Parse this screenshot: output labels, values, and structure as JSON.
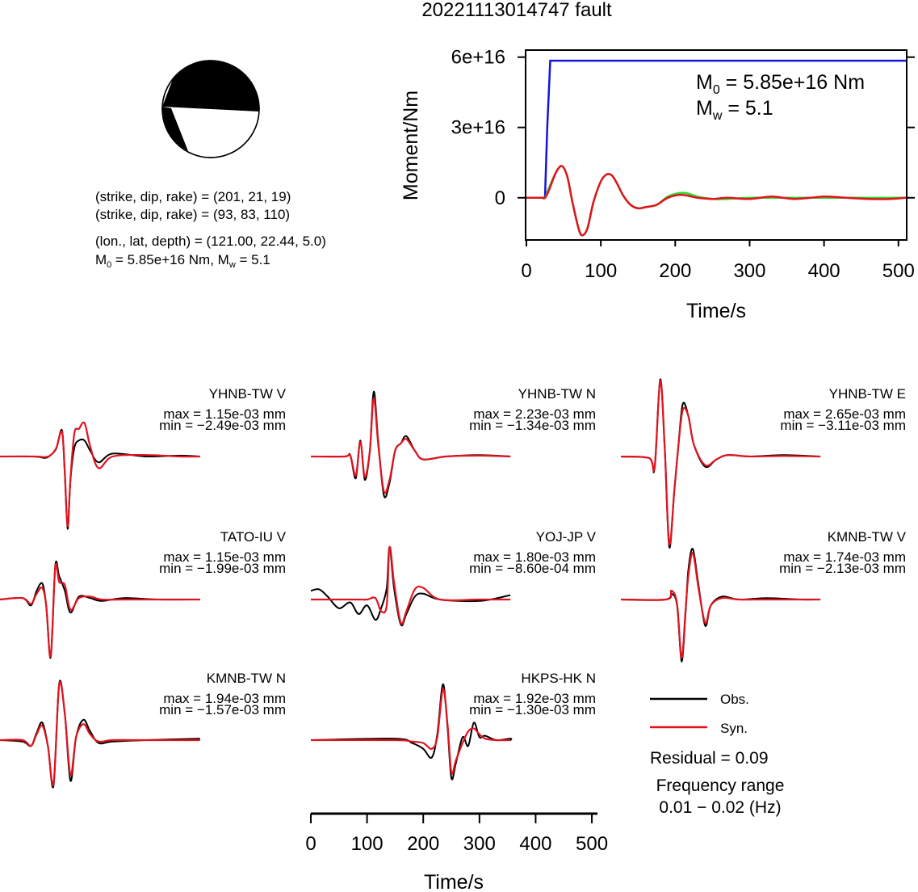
{
  "page": {
    "title": "20221113014747 fault"
  },
  "info": {
    "line1": "(strike, dip, rake) = (201, 21, 19)",
    "line2": "(strike, dip, rake) = (93, 83, 110)",
    "line3": "(lon., lat, depth) = (121.00, 22.44, 5.0)",
    "m0_prefix": "M",
    "m0_sub": "0",
    "m0_rest": " = 5.85e+16 Nm, M",
    "mw_sub": "w",
    "mw_rest": " = 5.1"
  },
  "moment_plot": {
    "ylabel": "Moment/Nm",
    "xlabel": "Time/s",
    "m0_prefix": "M",
    "m0_sub": "0",
    "m0_rest": " = 5.85e+16 Nm",
    "mw_prefix": "M",
    "mw_sub": "w",
    "mw_rest": " = 5.1",
    "yticks": [
      "0",
      "3e+16",
      "6e+16"
    ],
    "xticks": [
      "0",
      "100",
      "200",
      "300",
      "400",
      "500"
    ]
  },
  "legend": {
    "obs": "Obs.",
    "syn": "Syn.",
    "residual": "Residual = 0.09",
    "freq_title": "Frequency range",
    "freq_value": "0.01 − 0.02 (Hz)",
    "obs_color": "#000000",
    "syn_color": "#e0141e"
  },
  "wave_axis": {
    "xlabel": "Time/s",
    "xticks": [
      "0",
      "100",
      "200",
      "300",
      "400",
      "500"
    ]
  },
  "chart_data": [
    {
      "type": "line",
      "title": "",
      "xlabel": "Time/s",
      "ylabel": "Moment/Nm",
      "xlim": [
        0,
        510
      ],
      "ylim": [
        -1.8e+16,
        6.3e+16
      ],
      "series": [
        {
          "color": "#1414dc",
          "x": [
            0,
            25,
            28,
            32,
            510
          ],
          "y": [
            0,
            0,
            3e+16,
            5.85e+16,
            5.85e+16
          ]
        },
        {
          "color": "#2ed82e",
          "x": [
            0,
            20,
            25,
            30,
            40,
            48,
            55,
            62,
            70,
            75,
            82,
            90,
            100,
            108,
            115,
            122,
            130,
            140,
            150,
            160,
            175,
            190,
            205,
            215,
            230,
            250,
            270,
            300,
            330,
            360,
            400,
            430,
            460,
            490,
            510
          ],
          "y": [
            0,
            0,
            0,
            4000000000000000.0,
            1.1e+16,
            1.35e+16,
            9000000000000000.0,
            -2000000000000000.0,
            -1.3e+16,
            -1.6e+16,
            -1.3e+16,
            -2000000000000000.0,
            7000000000000000.0,
            1e+16,
            9500000000000000.0,
            6000000000000000.0,
            1000000000000000.0,
            -3000000000000000.0,
            -4500000000000000.0,
            -4000000000000000.0,
            -3000000000000000.0,
            500000000000000.0,
            2000000000000000.0,
            2000000000000000.0,
            500000000000000.0,
            -500000000000000.0,
            -500000000000000.0,
            0,
            0,
            0,
            0,
            0,
            0,
            0,
            0
          ]
        },
        {
          "color": "#e0141e",
          "x": [
            0,
            20,
            25,
            30,
            40,
            48,
            55,
            62,
            70,
            75,
            82,
            90,
            100,
            108,
            115,
            122,
            130,
            140,
            150,
            160,
            175,
            190,
            205,
            215,
            230,
            250,
            270,
            300,
            330,
            360,
            400,
            430,
            460,
            490,
            510
          ],
          "y": [
            0,
            0,
            0,
            3000000000000000.0,
            1.1e+16,
            1.35e+16,
            9000000000000000.0,
            -2000000000000000.0,
            -1.3e+16,
            -1.6e+16,
            -1.3e+16,
            -2000000000000000.0,
            7000000000000000.0,
            1e+16,
            9500000000000000.0,
            6000000000000000.0,
            1000000000000000.0,
            -3000000000000000.0,
            -4500000000000000.0,
            -4000000000000000.0,
            -3000000000000000.0,
            0,
            1200000000000000.0,
            1000000000000000.0,
            0,
            -500000000000000.0,
            0,
            -500000000000000.0,
            500000000000000.0,
            -500000000000000.0,
            500000000000000.0,
            0,
            -500000000000000.0,
            -500000000000000.0,
            0
          ]
        }
      ]
    },
    {
      "type": "line",
      "title": "YHNB-TW V",
      "max": "max = 1.15e-03 mm",
      "min": "min = −2.49e-03 mm",
      "xlim": [
        0,
        510
      ],
      "obs": {
        "x": [
          0,
          60,
          80,
          90,
          100,
          110,
          115,
          120,
          125,
          132,
          140,
          150,
          160,
          175,
          200,
          260,
          320,
          355
        ],
        "y": [
          0,
          0,
          -0.05,
          0.05,
          0.28,
          0.9,
          -0.6,
          -2.49,
          -0.8,
          0.3,
          0.55,
          0.55,
          0.2,
          -0.2,
          0.1,
          0,
          0.03,
          0
        ]
      },
      "syn": {
        "x": [
          0,
          60,
          80,
          90,
          100,
          110,
          115,
          120,
          125,
          132,
          140,
          150,
          160,
          175,
          200,
          260,
          320,
          355
        ],
        "y": [
          0,
          0,
          -0.02,
          0.05,
          0.3,
          0.85,
          -0.55,
          -2.4,
          -0.75,
          0.8,
          0.95,
          1.15,
          0.35,
          -0.4,
          0,
          0.05,
          0,
          0
        ]
      }
    },
    {
      "type": "line",
      "title": "YHNB-TW N",
      "max": "max = 2.23e-03 mm",
      "min": "min = −1.34e-03 mm",
      "xlim": [
        0,
        510
      ],
      "obs": {
        "x": [
          0,
          60,
          70,
          80,
          88,
          96,
          105,
          112,
          120,
          130,
          140,
          150,
          160,
          170,
          185,
          200,
          240,
          300,
          355
        ],
        "y": [
          0,
          0,
          0.05,
          -0.75,
          0.55,
          -0.8,
          0.2,
          2.23,
          0.5,
          -1.34,
          -0.9,
          0.2,
          0.45,
          0.7,
          0.2,
          -0.1,
          0,
          0.05,
          0
        ]
      },
      "syn": {
        "x": [
          0,
          60,
          70,
          80,
          88,
          96,
          105,
          112,
          120,
          130,
          140,
          150,
          160,
          170,
          185,
          200,
          240,
          300,
          355
        ],
        "y": [
          0,
          0,
          0.05,
          -0.65,
          0.5,
          -0.7,
          0.2,
          2.0,
          0.4,
          -1.2,
          -0.8,
          0.2,
          0.45,
          0.6,
          0.2,
          -0.1,
          0,
          0.03,
          0
        ]
      }
    },
    {
      "type": "line",
      "title": "YHNB-TW E",
      "max": "max = 2.65e-03 mm",
      "min": "min = −3.11e-03 mm",
      "xlim": [
        0,
        510
      ],
      "obs": {
        "x": [
          0,
          50,
          60,
          70,
          78,
          86,
          95,
          102,
          110,
          120,
          130,
          150,
          170,
          190,
          230,
          290,
          355
        ],
        "y": [
          0,
          -0.05,
          -0.4,
          2.65,
          0.3,
          -3.11,
          -1.2,
          0.3,
          1.8,
          1.4,
          0.4,
          -0.35,
          -0.1,
          0.05,
          0,
          0.05,
          0
        ]
      },
      "syn": {
        "x": [
          0,
          50,
          60,
          70,
          78,
          86,
          95,
          102,
          110,
          120,
          130,
          150,
          170,
          190,
          230,
          290,
          355
        ],
        "y": [
          0,
          -0.05,
          -0.35,
          2.6,
          0.3,
          -3.0,
          -1.2,
          0.3,
          1.6,
          1.4,
          0.4,
          -0.3,
          -0.1,
          0.05,
          0,
          0.02,
          0
        ]
      }
    },
    {
      "type": "line",
      "title": "TATO-IU V",
      "max": "max = 1.15e-03 mm",
      "min": "min = −1.99e-03 mm",
      "xlim": [
        0,
        510
      ],
      "obs": {
        "x": [
          0,
          40,
          55,
          65,
          75,
          82,
          90,
          98,
          105,
          115,
          125,
          140,
          160,
          180,
          220,
          280,
          355
        ],
        "y": [
          0,
          0.05,
          -0.2,
          0.3,
          0.55,
          -0.2,
          -1.99,
          1.15,
          0.8,
          0.3,
          -0.45,
          0.1,
          0.05,
          -0.05,
          0.05,
          0,
          0
        ]
      },
      "syn": {
        "x": [
          0,
          40,
          55,
          65,
          75,
          82,
          90,
          98,
          105,
          115,
          125,
          140,
          160,
          180,
          220,
          280,
          355
        ],
        "y": [
          0,
          0.05,
          -0.15,
          0.2,
          0.4,
          -0.2,
          -1.95,
          1.1,
          0.6,
          0.5,
          -0.35,
          0.05,
          0.1,
          0,
          0,
          0,
          0
        ]
      }
    },
    {
      "type": "line",
      "title": "YOJ-JP V",
      "max": "max = 1.80e-03 mm",
      "min": "min = −8.60e-04 mm",
      "xlim": [
        0,
        510
      ],
      "obs": {
        "x": [
          0,
          15,
          30,
          50,
          70,
          85,
          100,
          115,
          125,
          135,
          140,
          148,
          160,
          170,
          185,
          200,
          230,
          300,
          355
        ],
        "y": [
          0.3,
          0.35,
          0.1,
          -0.3,
          -0.1,
          -0.5,
          -0.2,
          -0.7,
          -0.3,
          0.4,
          1.8,
          0.4,
          -0.86,
          -0.5,
          0.1,
          0.2,
          0,
          -0.05,
          0.15
        ]
      },
      "syn": {
        "x": [
          0,
          15,
          30,
          50,
          70,
          85,
          100,
          115,
          125,
          135,
          140,
          148,
          160,
          170,
          185,
          200,
          230,
          300,
          355
        ],
        "y": [
          0,
          0,
          0,
          0,
          0,
          0,
          0,
          0.05,
          -0.4,
          -0.2,
          1.8,
          0.6,
          -0.8,
          -0.4,
          0.35,
          0.4,
          0,
          0,
          0
        ]
      }
    },
    {
      "type": "line",
      "title": "KMNB-TW V",
      "max": "max = 1.74e-03 mm",
      "min": "min = −2.13e-03 mm",
      "xlim": [
        0,
        510
      ],
      "obs": {
        "x": [
          0,
          80,
          90,
          100,
          108,
          115,
          120,
          128,
          138,
          150,
          160,
          180,
          210,
          260,
          320,
          355
        ],
        "y": [
          0,
          0,
          0.2,
          -0.2,
          -2.13,
          -0.5,
          1.0,
          1.74,
          0.5,
          -0.9,
          -0.2,
          0.1,
          0,
          0.05,
          0,
          0
        ]
      },
      "syn": {
        "x": [
          0,
          80,
          90,
          100,
          108,
          115,
          120,
          128,
          138,
          150,
          160,
          180,
          210,
          260,
          320,
          355
        ],
        "y": [
          0,
          0,
          0.3,
          -0.15,
          -2.0,
          -0.4,
          0.8,
          1.6,
          0.4,
          -0.8,
          -0.2,
          0.05,
          0,
          0,
          0,
          0
        ]
      }
    },
    {
      "type": "line",
      "title": "KMNB-TW N",
      "max": "max = 1.94e-03 mm",
      "min": "min = −1.57e-03 mm",
      "xlim": [
        0,
        510
      ],
      "obs": {
        "x": [
          0,
          40,
          55,
          65,
          75,
          85,
          95,
          105,
          115,
          125,
          135,
          148,
          160,
          175,
          200,
          260,
          355
        ],
        "y": [
          0,
          -0.05,
          -0.2,
          0.25,
          0.6,
          -0.2,
          -1.57,
          1.94,
          0.9,
          -1.4,
          0.1,
          0.7,
          0.3,
          -0.1,
          -0.05,
          0,
          0.05
        ]
      },
      "syn": {
        "x": [
          0,
          40,
          55,
          65,
          75,
          85,
          95,
          105,
          115,
          125,
          135,
          148,
          160,
          175,
          200,
          260,
          355
        ],
        "y": [
          0,
          0,
          -0.2,
          0.2,
          0.5,
          -0.2,
          -1.5,
          1.9,
          0.9,
          -1.2,
          0.1,
          0.55,
          0.2,
          -0.05,
          0,
          0,
          0
        ]
      }
    },
    {
      "type": "line",
      "title": "HKPS-HK N",
      "max": "max = 1.92e-03 mm",
      "min": "min = −1.30e-03 mm",
      "xlim": [
        0,
        510
      ],
      "obs": {
        "x": [
          0,
          150,
          180,
          200,
          215,
          225,
          235,
          243,
          250,
          258,
          270,
          280,
          290,
          300,
          310,
          330,
          360,
          400,
          355
        ],
        "y": [
          0,
          0.05,
          -0.1,
          -0.3,
          -0.6,
          0.2,
          1.92,
          0.5,
          -1.3,
          -0.8,
          0.1,
          -0.2,
          0.6,
          0.1,
          0.15,
          0,
          0.05,
          0,
          0
        ]
      },
      "syn": {
        "x": [
          0,
          150,
          180,
          200,
          215,
          225,
          235,
          243,
          250,
          258,
          270,
          280,
          290,
          300,
          310,
          330,
          355
        ],
        "y": [
          0,
          0,
          -0.05,
          -0.1,
          -0.3,
          0.1,
          1.75,
          0.6,
          -1.1,
          -0.7,
          -0.1,
          0.3,
          0.4,
          0.2,
          0.05,
          0,
          0
        ]
      }
    }
  ]
}
